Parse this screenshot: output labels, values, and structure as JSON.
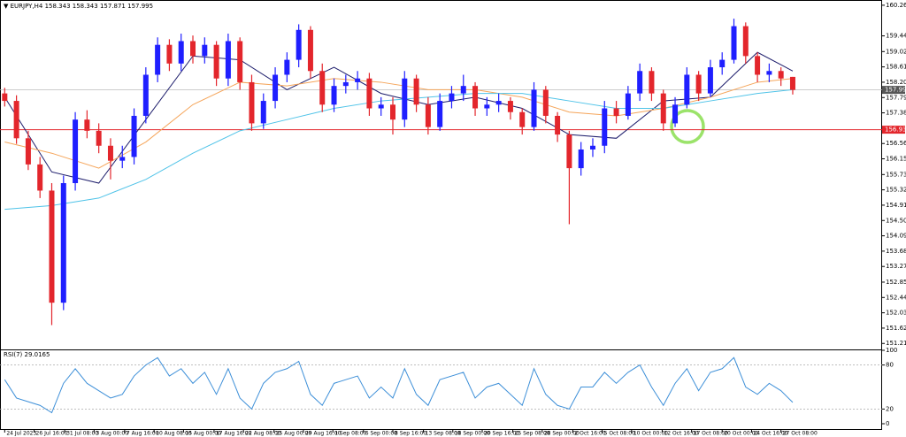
{
  "chart_data": [
    {
      "type": "candlestick",
      "title": "EURJPY,H4 158.343 158.343 157.871 157.995",
      "bull_color": "#1f1fff",
      "bear_color": "#e3262c",
      "ohlc": [
        [
          157.9,
          158.05,
          157.55,
          157.7
        ],
        [
          157.7,
          157.85,
          156.55,
          156.7
        ],
        [
          156.7,
          156.9,
          155.85,
          156.0
        ],
        [
          156.0,
          156.2,
          155.1,
          155.3
        ],
        [
          155.3,
          155.5,
          151.7,
          152.3
        ],
        [
          152.3,
          155.7,
          152.1,
          155.5
        ],
        [
          155.5,
          157.4,
          155.3,
          157.2
        ],
        [
          157.2,
          157.45,
          156.7,
          156.9
        ],
        [
          156.9,
          157.1,
          156.3,
          156.5
        ],
        [
          156.5,
          156.7,
          155.6,
          156.1
        ],
        [
          156.1,
          156.5,
          155.9,
          156.2
        ],
        [
          156.2,
          157.5,
          156.0,
          157.3
        ],
        [
          157.3,
          158.6,
          157.1,
          158.4
        ],
        [
          158.4,
          159.4,
          158.2,
          159.2
        ],
        [
          159.2,
          159.35,
          158.5,
          158.7
        ],
        [
          158.7,
          159.5,
          158.5,
          159.3
        ],
        [
          159.3,
          159.45,
          158.7,
          158.9
        ],
        [
          158.9,
          159.4,
          158.7,
          159.2
        ],
        [
          159.2,
          159.3,
          158.1,
          158.3
        ],
        [
          158.3,
          159.5,
          158.1,
          159.3
        ],
        [
          159.3,
          159.4,
          158.0,
          158.2
        ],
        [
          158.2,
          158.4,
          156.9,
          157.1
        ],
        [
          157.1,
          157.9,
          156.95,
          157.7
        ],
        [
          157.7,
          158.6,
          157.5,
          158.4
        ],
        [
          158.4,
          159.0,
          158.2,
          158.8
        ],
        [
          158.8,
          159.75,
          158.6,
          159.6
        ],
        [
          159.6,
          159.7,
          158.3,
          158.5
        ],
        [
          158.5,
          158.7,
          157.4,
          157.6
        ],
        [
          157.6,
          158.3,
          157.4,
          158.1
        ],
        [
          158.1,
          158.4,
          157.9,
          158.2
        ],
        [
          158.2,
          158.5,
          158.0,
          158.3
        ],
        [
          158.3,
          158.45,
          157.3,
          157.5
        ],
        [
          157.5,
          157.8,
          157.3,
          157.6
        ],
        [
          157.6,
          157.8,
          156.8,
          157.2
        ],
        [
          157.2,
          158.5,
          157.0,
          158.3
        ],
        [
          158.3,
          158.4,
          157.4,
          157.6
        ],
        [
          157.6,
          157.8,
          156.8,
          157.0
        ],
        [
          157.0,
          157.9,
          156.9,
          157.7
        ],
        [
          157.7,
          158.1,
          157.5,
          157.9
        ],
        [
          157.9,
          158.4,
          157.7,
          158.1
        ],
        [
          158.1,
          158.2,
          157.3,
          157.5
        ],
        [
          157.5,
          157.8,
          157.3,
          157.6
        ],
        [
          157.6,
          157.9,
          157.4,
          157.7
        ],
        [
          157.7,
          157.8,
          157.2,
          157.4
        ],
        [
          157.4,
          157.5,
          156.8,
          157.0
        ],
        [
          157.0,
          158.2,
          156.9,
          158.0
        ],
        [
          158.0,
          158.1,
          157.1,
          157.3
        ],
        [
          157.3,
          157.4,
          156.6,
          156.8
        ],
        [
          156.8,
          156.9,
          154.4,
          155.9
        ],
        [
          155.9,
          156.6,
          155.7,
          156.4
        ],
        [
          156.4,
          156.7,
          156.2,
          156.5
        ],
        [
          156.5,
          157.7,
          156.3,
          157.5
        ],
        [
          157.5,
          157.7,
          157.1,
          157.3
        ],
        [
          157.3,
          158.1,
          157.2,
          157.9
        ],
        [
          157.9,
          158.7,
          157.7,
          158.5
        ],
        [
          158.5,
          158.6,
          157.7,
          157.9
        ],
        [
          157.9,
          158.0,
          156.9,
          157.1
        ],
        [
          157.1,
          157.8,
          157.0,
          157.6
        ],
        [
          157.6,
          158.6,
          157.5,
          158.4
        ],
        [
          158.4,
          158.5,
          157.7,
          157.9
        ],
        [
          157.9,
          158.8,
          157.8,
          158.6
        ],
        [
          158.6,
          159.0,
          158.4,
          158.8
        ],
        [
          158.8,
          159.9,
          158.7,
          159.7
        ],
        [
          159.7,
          159.8,
          158.7,
          158.9
        ],
        [
          158.9,
          159.0,
          158.2,
          158.4
        ],
        [
          158.4,
          158.7,
          158.2,
          158.5
        ],
        [
          158.5,
          158.6,
          158.1,
          158.3
        ],
        [
          158.343,
          158.343,
          157.871,
          157.995
        ]
      ],
      "moving_averages": [
        {
          "color": "#1c1c6b",
          "x": [
            0,
            4,
            8,
            12,
            16,
            20,
            24,
            28,
            32,
            36,
            40,
            44,
            48,
            52,
            56,
            60,
            64,
            67
          ],
          "values": [
            157.8,
            155.8,
            155.5,
            157.2,
            158.9,
            158.8,
            158.0,
            158.6,
            157.9,
            157.6,
            157.8,
            157.5,
            156.8,
            156.7,
            157.7,
            157.8,
            159.0,
            158.5
          ]
        },
        {
          "color": "#f5a55a",
          "x": [
            0,
            4,
            8,
            12,
            16,
            20,
            24,
            28,
            32,
            36,
            40,
            44,
            48,
            52,
            56,
            60,
            64,
            67
          ],
          "values": [
            156.6,
            156.3,
            155.9,
            156.6,
            157.6,
            158.2,
            158.1,
            158.3,
            158.2,
            158.0,
            158.0,
            157.8,
            157.4,
            157.3,
            157.5,
            157.8,
            158.2,
            158.3
          ]
        },
        {
          "color": "#4fc3e8",
          "x": [
            0,
            4,
            8,
            12,
            16,
            20,
            24,
            28,
            32,
            36,
            40,
            44,
            48,
            52,
            56,
            60,
            64,
            67
          ],
          "values": [
            154.8,
            154.9,
            155.1,
            155.6,
            156.3,
            156.9,
            157.2,
            157.5,
            157.7,
            157.8,
            157.9,
            157.9,
            157.7,
            157.5,
            157.5,
            157.7,
            157.9,
            158.0
          ]
        }
      ],
      "level": {
        "value": 156.93,
        "label": "156.930",
        "color": "#e3262c"
      },
      "current_price": {
        "value": 157.995,
        "label": "157.995"
      },
      "xlim": [
        -0.4,
        74.6
      ],
      "ylim": [
        151.05,
        160.4
      ],
      "yticks": [
        {
          "value": 160.26,
          "label": "160.260"
        },
        {
          "value": 159.44,
          "label": "159.440"
        },
        {
          "value": 159.02,
          "label": "159.020"
        },
        {
          "value": 158.61,
          "label": "158.610"
        },
        {
          "value": 158.2,
          "label": "158.200"
        },
        {
          "value": 157.79,
          "label": "157.790"
        },
        {
          "value": 157.38,
          "label": "157.380"
        },
        {
          "value": 156.56,
          "label": "156.560"
        },
        {
          "value": 156.15,
          "label": "156.150"
        },
        {
          "value": 155.73,
          "label": "155.730"
        },
        {
          "value": 155.32,
          "label": "155.320"
        },
        {
          "value": 154.91,
          "label": "154.910"
        },
        {
          "value": 154.5,
          "label": "154.500"
        },
        {
          "value": 154.09,
          "label": "154.090"
        },
        {
          "value": 153.68,
          "label": "153.680"
        },
        {
          "value": 153.27,
          "label": "153.270"
        },
        {
          "value": 152.85,
          "label": "152.850"
        },
        {
          "value": 152.44,
          "label": "152.440"
        },
        {
          "value": 152.03,
          "label": "152.030"
        },
        {
          "value": 151.62,
          "label": "151.620"
        },
        {
          "value": 151.21,
          "label": "151.210"
        }
      ],
      "xticks": [
        {
          "value": 0,
          "label": "24 Jul 2023"
        },
        {
          "value": 2.5,
          "label": "26 Jul 16:00"
        },
        {
          "value": 5.1,
          "label": "31 Jul 08:00"
        },
        {
          "value": 7.6,
          "label": "3 Aug 00:00"
        },
        {
          "value": 10.2,
          "label": "7 Aug 16:00"
        },
        {
          "value": 12.7,
          "label": "10 Aug 08:00"
        },
        {
          "value": 15.2,
          "label": "15 Aug 00:00"
        },
        {
          "value": 17.8,
          "label": "17 Aug 16:00"
        },
        {
          "value": 20.3,
          "label": "22 Aug 08:00"
        },
        {
          "value": 22.9,
          "label": "25 Aug 00:00"
        },
        {
          "value": 25.4,
          "label": "29 Aug 16:00"
        },
        {
          "value": 27.9,
          "label": "1 Sep 08:00"
        },
        {
          "value": 30.5,
          "label": "6 Sep 00:00"
        },
        {
          "value": 33.0,
          "label": "8 Sep 16:00"
        },
        {
          "value": 35.6,
          "label": "13 Sep 08:00"
        },
        {
          "value": 38.1,
          "label": "18 Sep 00:00"
        },
        {
          "value": 40.6,
          "label": "20 Sep 16:00"
        },
        {
          "value": 43.2,
          "label": "25 Sep 08:00"
        },
        {
          "value": 45.7,
          "label": "28 Sep 00:00"
        },
        {
          "value": 48.3,
          "label": "2 Oct 16:00"
        },
        {
          "value": 50.8,
          "label": "5 Oct 08:00"
        },
        {
          "value": 53.3,
          "label": "10 Oct 00:00"
        },
        {
          "value": 55.9,
          "label": "12 Oct 16:00"
        },
        {
          "value": 58.4,
          "label": "17 Oct 08:00"
        },
        {
          "value": 61.0,
          "label": "20 Oct 00:00"
        },
        {
          "value": 63.5,
          "label": "24 Oct 16:00"
        },
        {
          "value": 66.0,
          "label": "27 Oct 08:00"
        }
      ]
    },
    {
      "type": "line",
      "title": "RSI(7) 29.0165",
      "color": "#3d8fd8",
      "ylim": [
        0,
        100
      ],
      "yticks": [
        0,
        20,
        80,
        100
      ],
      "values": [
        60,
        35,
        30,
        25,
        15,
        55,
        75,
        55,
        45,
        35,
        40,
        65,
        80,
        90,
        65,
        75,
        55,
        70,
        40,
        75,
        35,
        20,
        55,
        70,
        75,
        85,
        40,
        25,
        55,
        60,
        65,
        35,
        50,
        35,
        75,
        40,
        25,
        60,
        65,
        70,
        35,
        50,
        55,
        40,
        25,
        75,
        40,
        25,
        20,
        50,
        50,
        70,
        55,
        70,
        80,
        50,
        25,
        55,
        75,
        45,
        70,
        75,
        90,
        50,
        40,
        55,
        45,
        29.0165
      ]
    }
  ]
}
